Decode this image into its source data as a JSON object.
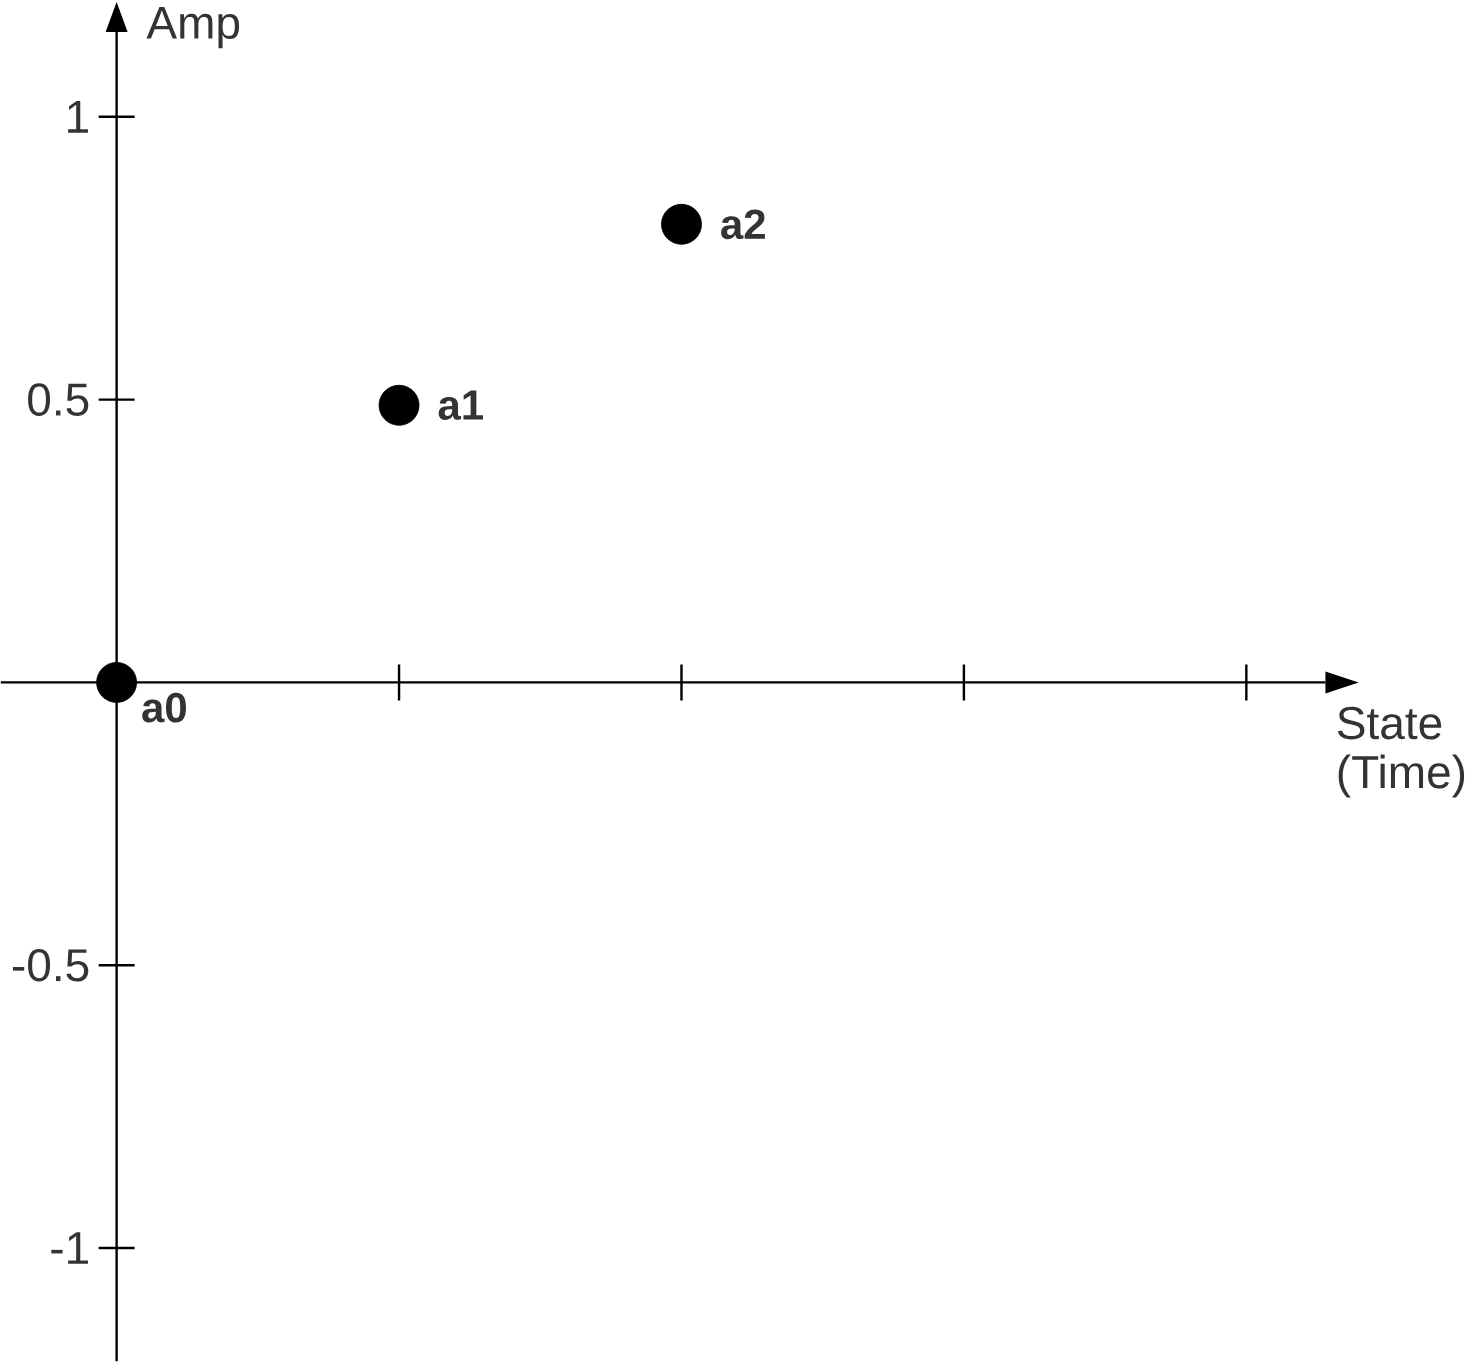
{
  "chart_data": {
    "type": "scatter",
    "xlabel": "State (Time)",
    "ylabel": "Amp",
    "categories": [
      null,
      null,
      null,
      null,
      null
    ],
    "values": [
      0,
      0.49,
      0.81,
      null,
      null
    ],
    "value_labels": [
      "a0",
      "a1",
      "a2",
      null,
      null
    ],
    "color": "#000000",
    "ylim": [
      -1.2,
      1.15
    ],
    "yticks": [
      -1,
      -0.5,
      0.5,
      1
    ],
    "marker": "circle"
  }
}
